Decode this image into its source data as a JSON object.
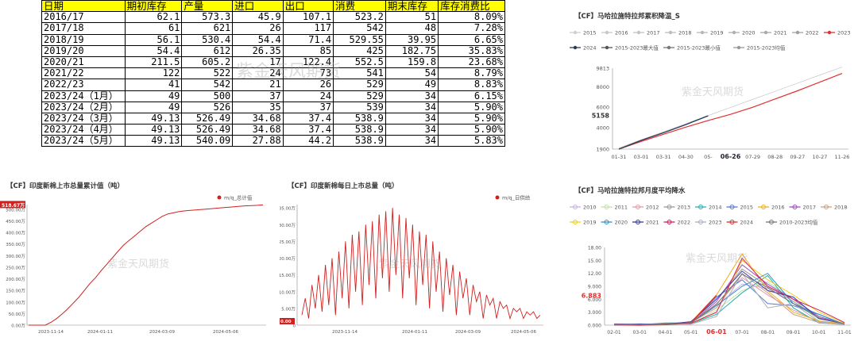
{
  "table": {
    "headers": [
      "日期",
      "期初库存",
      "产量",
      "进口",
      "出口",
      "消费",
      "期末库存",
      "库存消费比"
    ],
    "rows": [
      [
        "2016/17",
        "62.1",
        "573.3",
        "45.9",
        "107.1",
        "523.2",
        "51",
        "8.09%"
      ],
      [
        "2017/18",
        "61",
        "621",
        "26",
        "117",
        "542",
        "48",
        "7.28%"
      ],
      [
        "2018/19",
        "56.1",
        "530.4",
        "54.4",
        "71.4",
        "529.55",
        "39.95",
        "6.65%"
      ],
      [
        "2019/20",
        "54.4",
        "612",
        "26.35",
        "85",
        "425",
        "182.75",
        "35.83%"
      ],
      [
        "2020/21",
        "211.5",
        "605.2",
        "17",
        "122.4",
        "552.5",
        "159.8",
        "23.68%"
      ],
      [
        "2021/22",
        "122",
        "522",
        "24",
        "73",
        "541",
        "54",
        "8.79%"
      ],
      [
        "2022/23",
        "41",
        "542",
        "21",
        "26",
        "529",
        "49",
        "8.83%"
      ],
      [
        "2023/24（1月）",
        "49",
        "500",
        "37",
        "24",
        "529",
        "34",
        "6.15%"
      ],
      [
        "2023/24（2月）",
        "49",
        "526",
        "35",
        "37",
        "539",
        "34",
        "5.90%"
      ],
      [
        "2023/24（3月）",
        "49.13",
        "526.49",
        "34.68",
        "37.4",
        "538.9",
        "34",
        "5.90%"
      ],
      [
        "2023/24（4月）",
        "49.13",
        "526.49",
        "34.68",
        "37.4",
        "538.9",
        "34",
        "5.90%"
      ],
      [
        "2023/24（5月）",
        "49.13",
        "540.09",
        "27.88",
        "44.2",
        "538.9",
        "34",
        "5.83%"
      ]
    ],
    "watermark": "紫金天风期货"
  },
  "chart_data": [
    {
      "id": "brazil_cum",
      "type": "line",
      "title": "【CF】马哈拉施特拉邦累积降温_S",
      "legend": [
        "2015",
        "2016",
        "2017",
        "2018",
        "2019",
        "2020",
        "2021",
        "2022",
        "2023",
        "2024",
        "2015-2023最大值",
        "2015-2023最小值",
        "2015-2023均值"
      ],
      "x_ticks": [
        "01-31",
        "03-01",
        "03-31",
        "04-30",
        "05-",
        "06-26",
        "07-29",
        "08-28",
        "09-27",
        "10-27",
        "11-26"
      ],
      "highlight_x": "06-26",
      "y_ticks": [
        "1900",
        "4000",
        "5158",
        "6000",
        "8000",
        "9813"
      ],
      "highlight_y": "5158",
      "ylim": [
        1900,
        9813
      ],
      "series": [
        {
          "name": "2023",
          "color": "#e03030",
          "x": [
            0,
            1,
            2,
            3,
            4,
            5,
            6,
            7,
            8,
            9,
            10
          ],
          "values": [
            1900,
            2650,
            3350,
            4050,
            4700,
            5300,
            6000,
            6800,
            7600,
            8450,
            9300
          ]
        },
        {
          "name": "2024",
          "color": "#2b3a57",
          "x": [
            0,
            1,
            2,
            3,
            4
          ],
          "values": [
            1900,
            2750,
            3500,
            4300,
            5158
          ]
        }
      ],
      "watermark": "紫金天风期货"
    },
    {
      "id": "india_daily_cum",
      "type": "line",
      "title": "【CF】印度新棉上市总量累计值（吨）",
      "legend": [
        "m/q_总计值"
      ],
      "y_ticks": [
        "0.00万",
        "50.00万",
        "100.00万",
        "150.00万",
        "200.00万",
        "250.00万",
        "300.00万",
        "350.00万",
        "400.00万",
        "450.00万",
        "500.00万"
      ],
      "highlight_y": "518.67万",
      "x_ticks": [
        "2023-11-14",
        "2024-01-11",
        "2024-03-09",
        "2024-05-06"
      ],
      "ylim": [
        0,
        520
      ],
      "series": [
        {
          "name": "m/q_总计值",
          "color": "#d02020",
          "values": [
            0,
            0,
            0,
            0,
            12,
            28,
            48,
            70,
            95,
            120,
            150,
            180,
            205,
            235,
            262,
            290,
            318,
            345,
            365,
            385,
            405,
            425,
            440,
            455,
            470,
            480,
            485,
            490,
            493,
            495,
            497,
            499,
            501,
            503,
            505,
            507,
            509,
            511,
            513,
            515,
            516,
            517,
            518.67
          ]
        }
      ],
      "watermark": "紫金天风期货"
    },
    {
      "id": "india_daily",
      "type": "line",
      "title": "【CF】印度新棉每日上市总量（吨）",
      "legend": [
        "m/q_日供给"
      ],
      "y_ticks": [
        "0",
        "5.00万",
        "10.00万",
        "15.00万",
        "20.00万",
        "25.00万",
        "30.00万",
        "35.00万"
      ],
      "highlight_y": "0.00",
      "x_ticks": [
        "2023-11-14",
        "2024-01-11",
        "2024-03-09",
        "2024-05-06"
      ],
      "ylim": [
        0,
        36
      ],
      "series": [
        {
          "name": "m/q_日供给",
          "color": "#d02020",
          "values": [
            3,
            8,
            2,
            12,
            5,
            15,
            4,
            18,
            6,
            20,
            3,
            22,
            8,
            25,
            5,
            27,
            10,
            28,
            6,
            30,
            12,
            31,
            8,
            33,
            14,
            34,
            10,
            35,
            15,
            33,
            8,
            32,
            14,
            30,
            6,
            28,
            12,
            27,
            5,
            25,
            10,
            22,
            4,
            20,
            9,
            18,
            3,
            16,
            8,
            14,
            3,
            12,
            7,
            10,
            2,
            9,
            6,
            8,
            2,
            7,
            5,
            6,
            2,
            5,
            4,
            5,
            2,
            4,
            3,
            4,
            2,
            3
          ]
        }
      ],
      "watermark": "紫金天风期货"
    },
    {
      "id": "maha_monthly",
      "type": "line",
      "title": "【CF】马哈拉施特拉邦月度平均降水",
      "legend": [
        "2010",
        "2011",
        "2012",
        "2013",
        "2014",
        "2015",
        "2016",
        "2017",
        "2018",
        "2019",
        "2020",
        "2021",
        "2022",
        "2023",
        "2024",
        "2010-2023均值"
      ],
      "legend_colors": [
        "#c9b3e6",
        "#c3e2a0",
        "#e89aa8",
        "#9a9a9a",
        "#2bb0b0",
        "#5a7bd6",
        "#f0b020",
        "#a050c0",
        "#c8a080",
        "#f0d020",
        "#3090d0",
        "#3a3aa0",
        "#d02060",
        "#aab0c0",
        "#e03030",
        "#777777"
      ],
      "x_ticks": [
        "02-01",
        "03-01",
        "04-01",
        "05-01",
        "06-01",
        "07-01",
        "08-01",
        "09-01",
        "10-01",
        "11-01"
      ],
      "highlight_x": "06-01",
      "y_ticks": [
        "0.000",
        "3.000",
        "6.000",
        "9.000",
        "12.00",
        "15.00",
        "18.00"
      ],
      "highlight_y": "6.883",
      "ylim": [
        0,
        18
      ],
      "series": [
        {
          "name": "2010",
          "values": [
            0.1,
            0.0,
            0.2,
            0.5,
            4.5,
            9.5,
            8.5,
            5.0,
            2.0,
            0.3
          ]
        },
        {
          "name": "2011",
          "values": [
            0.0,
            0.1,
            0.1,
            0.3,
            3.5,
            8.0,
            10.0,
            6.0,
            1.0,
            0.2
          ]
        },
        {
          "name": "2012",
          "values": [
            0.2,
            0.0,
            0.3,
            0.4,
            5.0,
            11.0,
            7.0,
            3.5,
            0.8,
            0.1
          ]
        },
        {
          "name": "2013",
          "values": [
            0.0,
            0.2,
            0.2,
            0.6,
            6.0,
            13.0,
            9.0,
            5.5,
            1.5,
            0.4
          ]
        },
        {
          "name": "2014",
          "values": [
            0.1,
            0.1,
            0.4,
            0.3,
            2.5,
            7.5,
            11.5,
            4.0,
            0.5,
            0.2
          ]
        },
        {
          "name": "2015",
          "values": [
            0.0,
            0.3,
            0.2,
            0.5,
            6.5,
            10.5,
            5.0,
            4.5,
            2.5,
            0.1
          ]
        },
        {
          "name": "2016",
          "values": [
            0.1,
            0.0,
            0.1,
            0.7,
            7.0,
            16.5,
            8.0,
            3.0,
            1.0,
            0.3
          ]
        },
        {
          "name": "2017",
          "values": [
            0.0,
            0.1,
            0.3,
            0.4,
            5.5,
            14.0,
            9.5,
            6.0,
            2.0,
            0.2
          ]
        },
        {
          "name": "2018",
          "values": [
            0.2,
            0.2,
            0.1,
            0.6,
            4.0,
            12.0,
            7.5,
            2.5,
            0.6,
            0.1
          ]
        },
        {
          "name": "2019",
          "values": [
            0.1,
            0.0,
            0.2,
            0.3,
            3.0,
            15.0,
            10.5,
            7.0,
            3.0,
            0.5
          ]
        },
        {
          "name": "2020",
          "values": [
            0.0,
            0.1,
            0.5,
            0.5,
            4.5,
            9.0,
            12.0,
            5.0,
            2.5,
            0.2
          ]
        },
        {
          "name": "2021",
          "values": [
            0.3,
            0.2,
            0.2,
            0.8,
            6.0,
            12.5,
            8.0,
            6.5,
            1.5,
            0.3
          ]
        },
        {
          "name": "2022",
          "values": [
            0.1,
            0.0,
            0.1,
            0.4,
            3.0,
            15.5,
            9.0,
            6.0,
            3.5,
            0.6
          ]
        },
        {
          "name": "2023",
          "values": [
            0.2,
            0.1,
            0.3,
            0.2,
            2.0,
            12.0,
            4.0,
            5.0,
            0.8,
            0.2
          ]
        },
        {
          "name": "2024",
          "values": [
            0.1,
            0.0,
            0.2,
            0.5,
            6.883
          ]
        },
        {
          "name": "2010-2023均值",
          "values": [
            0.1,
            0.1,
            0.2,
            0.5,
            4.8,
            11.8,
            8.7,
            5.0,
            1.7,
            0.3
          ]
        }
      ],
      "watermark": "紫金天风期货"
    }
  ]
}
